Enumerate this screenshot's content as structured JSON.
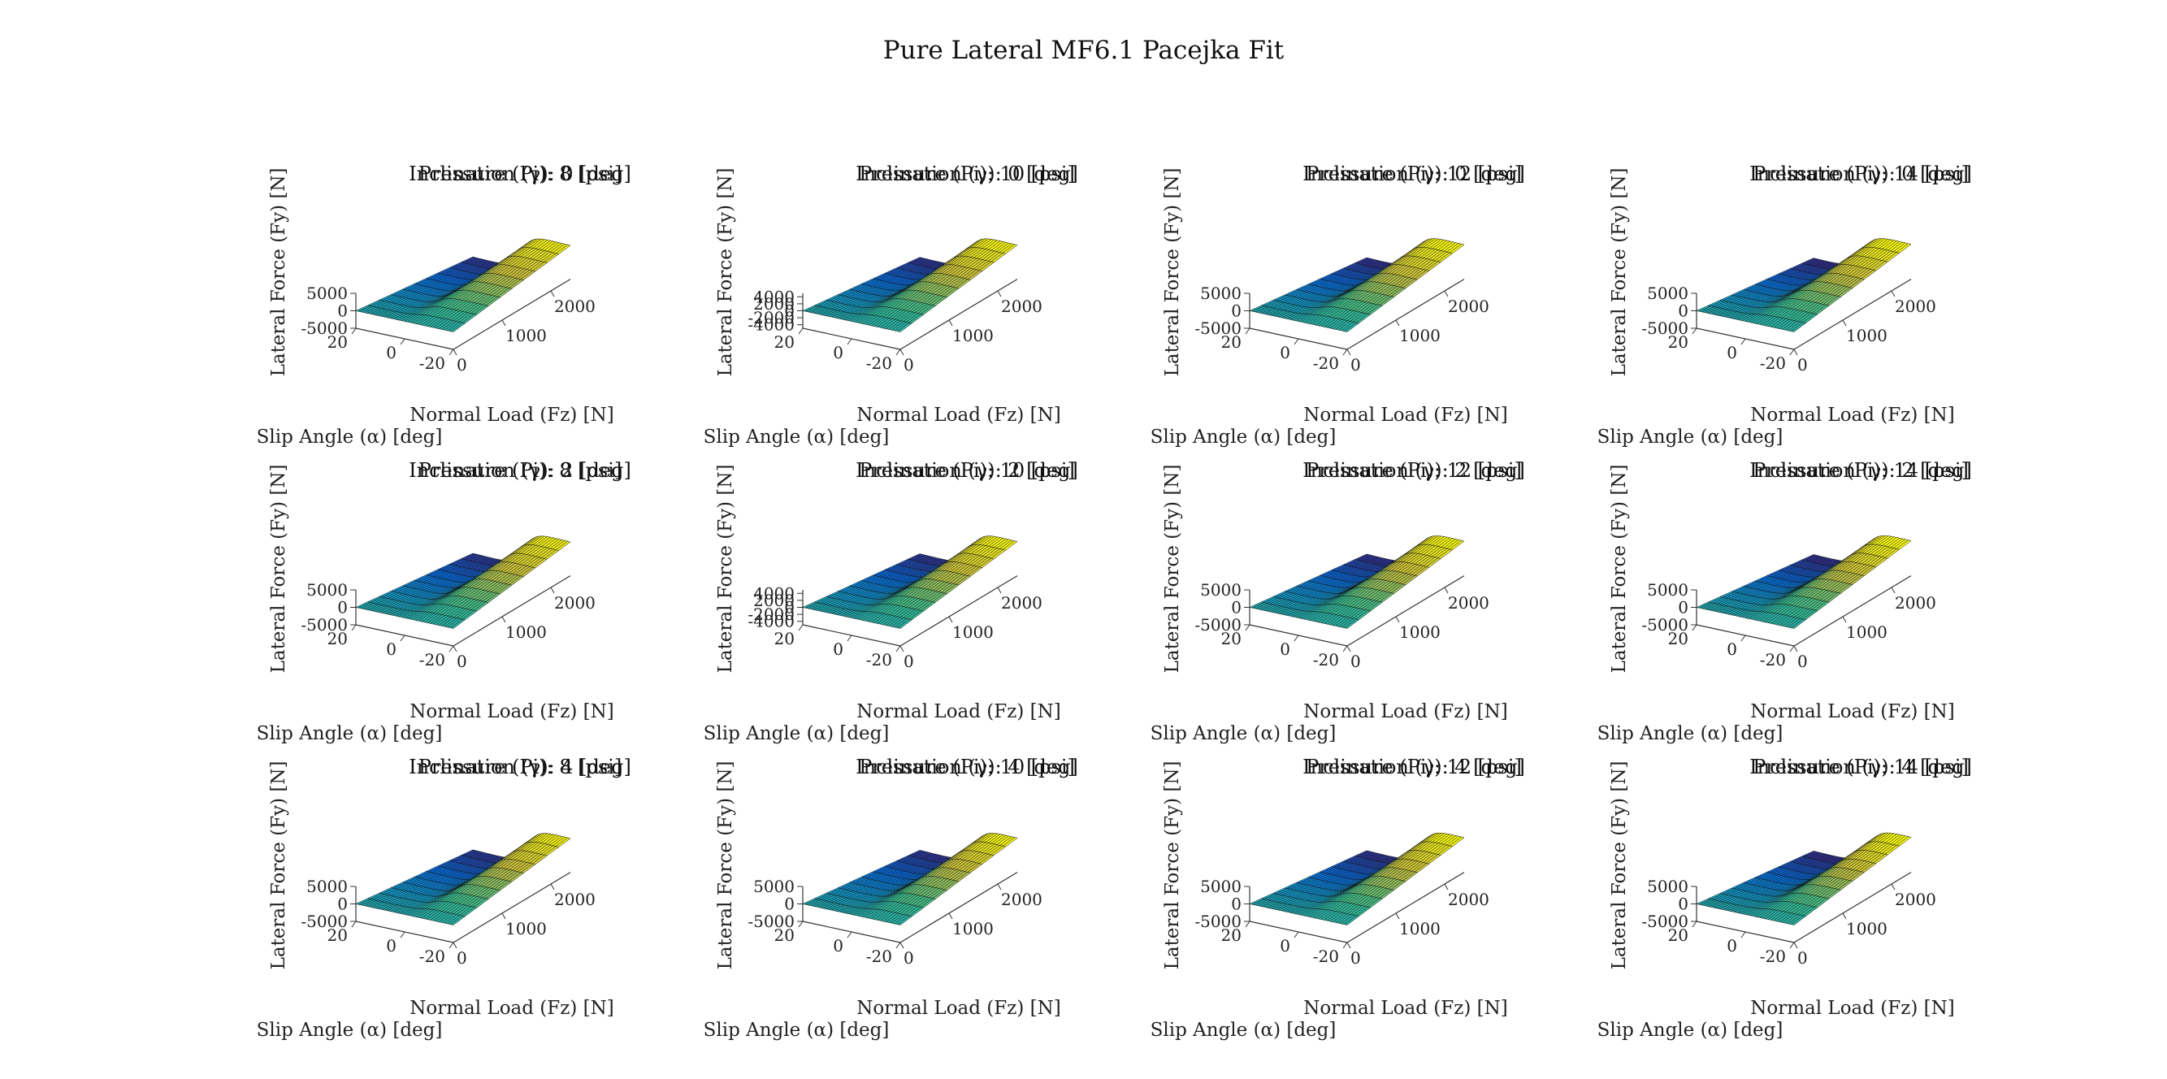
{
  "figure": {
    "title": "Pure Lateral MF6.1 Pacejka Fit"
  },
  "chart_data": [
    {
      "type": "surface",
      "pressure": 8,
      "inclination": 0,
      "title_pressure": "Pressure (Pi): 8 [psi]",
      "title_inclination": "Inclination (γ): 0 [deg]",
      "xlabel": "Normal Load (Fz) [N]",
      "ylabel": "Slip Angle (α) [deg]",
      "zlabel": "Lateral Force (Fy) [N]",
      "x_ticks": [
        "0",
        "1000",
        "2000"
      ],
      "y_ticks": [
        "20",
        "0",
        "-20"
      ],
      "z_ticks": [
        "5000",
        "0",
        "-5000"
      ],
      "xlim": [
        0,
        2400
      ],
      "ylim": [
        -20,
        20
      ],
      "zlim": [
        -5000,
        5000
      ]
    },
    {
      "type": "surface",
      "pressure": 10,
      "inclination": 0,
      "title_pressure": "Pressure (Pi): 10 [psi]",
      "title_inclination": "Inclination (γ): 0 [deg]",
      "xlabel": "Normal Load (Fz) [N]",
      "ylabel": "Slip Angle (α) [deg]",
      "zlabel": "Lateral Force (Fy) [N]",
      "x_ticks": [
        "0",
        "1000",
        "2000"
      ],
      "y_ticks": [
        "20",
        "0",
        "-20"
      ],
      "z_ticks": [
        "4000",
        "2000",
        "0",
        "-2000",
        "-4000"
      ],
      "xlim": [
        0,
        2400
      ],
      "ylim": [
        -20,
        20
      ],
      "zlim": [
        -5000,
        5000
      ]
    },
    {
      "type": "surface",
      "pressure": 12,
      "inclination": 0,
      "title_pressure": "Pressure (Pi): 12 [psi]",
      "title_inclination": "Inclination (γ): 0 [deg]",
      "xlabel": "Normal Load (Fz) [N]",
      "ylabel": "Slip Angle (α) [deg]",
      "zlabel": "Lateral Force (Fy) [N]",
      "x_ticks": [
        "0",
        "1000",
        "2000"
      ],
      "y_ticks": [
        "20",
        "0",
        "-20"
      ],
      "z_ticks": [
        "5000",
        "0",
        "-5000"
      ],
      "xlim": [
        0,
        2400
      ],
      "ylim": [
        -20,
        20
      ],
      "zlim": [
        -5000,
        5000
      ]
    },
    {
      "type": "surface",
      "pressure": 14,
      "inclination": 0,
      "title_pressure": "Pressure (Pi): 14 [psi]",
      "title_inclination": "Inclination (γ): 0 [deg]",
      "xlabel": "Normal Load (Fz) [N]",
      "ylabel": "Slip Angle (α) [deg]",
      "zlabel": "Lateral Force (Fy) [N]",
      "x_ticks": [
        "0",
        "1000",
        "2000"
      ],
      "y_ticks": [
        "20",
        "0",
        "-20"
      ],
      "z_ticks": [
        "5000",
        "0",
        "-5000"
      ],
      "xlim": [
        0,
        2400
      ],
      "ylim": [
        -20,
        20
      ],
      "zlim": [
        -5000,
        5000
      ]
    },
    {
      "type": "surface",
      "pressure": 8,
      "inclination": 2,
      "title_pressure": "Pressure (Pi): 8 [psi]",
      "title_inclination": "Inclination (γ): 2 [deg]",
      "xlabel": "Normal Load (Fz) [N]",
      "ylabel": "Slip Angle (α) [deg]",
      "zlabel": "Lateral Force (Fy) [N]",
      "x_ticks": [
        "0",
        "1000",
        "2000"
      ],
      "y_ticks": [
        "20",
        "0",
        "-20"
      ],
      "z_ticks": [
        "5000",
        "0",
        "-5000"
      ],
      "xlim": [
        0,
        2400
      ],
      "ylim": [
        -20,
        20
      ],
      "zlim": [
        -5000,
        5000
      ]
    },
    {
      "type": "surface",
      "pressure": 10,
      "inclination": 2,
      "title_pressure": "Pressure (Pi): 10 [psi]",
      "title_inclination": "Inclination (γ): 2 [deg]",
      "xlabel": "Normal Load (Fz) [N]",
      "ylabel": "Slip Angle (α) [deg]",
      "zlabel": "Lateral Force (Fy) [N]",
      "x_ticks": [
        "0",
        "1000",
        "2000"
      ],
      "y_ticks": [
        "20",
        "0",
        "-20"
      ],
      "z_ticks": [
        "4000",
        "2000",
        "0",
        "-2000",
        "-4000"
      ],
      "xlim": [
        0,
        2400
      ],
      "ylim": [
        -20,
        20
      ],
      "zlim": [
        -5000,
        5000
      ]
    },
    {
      "type": "surface",
      "pressure": 12,
      "inclination": 2,
      "title_pressure": "Pressure (Pi): 12 [psi]",
      "title_inclination": "Inclination (γ): 2 [deg]",
      "xlabel": "Normal Load (Fz) [N]",
      "ylabel": "Slip Angle (α) [deg]",
      "zlabel": "Lateral Force (Fy) [N]",
      "x_ticks": [
        "0",
        "1000",
        "2000"
      ],
      "y_ticks": [
        "20",
        "0",
        "-20"
      ],
      "z_ticks": [
        "5000",
        "0",
        "-5000"
      ],
      "xlim": [
        0,
        2400
      ],
      "ylim": [
        -20,
        20
      ],
      "zlim": [
        -5000,
        5000
      ]
    },
    {
      "type": "surface",
      "pressure": 14,
      "inclination": 2,
      "title_pressure": "Pressure (Pi): 14 [psi]",
      "title_inclination": "Inclination (γ): 2 [deg]",
      "xlabel": "Normal Load (Fz) [N]",
      "ylabel": "Slip Angle (α) [deg]",
      "zlabel": "Lateral Force (Fy) [N]",
      "x_ticks": [
        "0",
        "1000",
        "2000"
      ],
      "y_ticks": [
        "20",
        "0",
        "-20"
      ],
      "z_ticks": [
        "5000",
        "0",
        "-5000"
      ],
      "xlim": [
        0,
        2400
      ],
      "ylim": [
        -20,
        20
      ],
      "zlim": [
        -5000,
        5000
      ]
    },
    {
      "type": "surface",
      "pressure": 8,
      "inclination": 4,
      "title_pressure": "Pressure (Pi): 8 [psi]",
      "title_inclination": "Inclination (γ): 4 [deg]",
      "xlabel": "Normal Load (Fz) [N]",
      "ylabel": "Slip Angle (α) [deg]",
      "zlabel": "Lateral Force (Fy) [N]",
      "x_ticks": [
        "0",
        "1000",
        "2000"
      ],
      "y_ticks": [
        "20",
        "0",
        "-20"
      ],
      "z_ticks": [
        "5000",
        "0",
        "-5000"
      ],
      "xlim": [
        0,
        2400
      ],
      "ylim": [
        -20,
        20
      ],
      "zlim": [
        -5000,
        5000
      ]
    },
    {
      "type": "surface",
      "pressure": 10,
      "inclination": 4,
      "title_pressure": "Pressure (Pi): 10 [psi]",
      "title_inclination": "Inclination (γ): 4 [deg]",
      "xlabel": "Normal Load (Fz) [N]",
      "ylabel": "Slip Angle (α) [deg]",
      "zlabel": "Lateral Force (Fy) [N]",
      "x_ticks": [
        "0",
        "1000",
        "2000"
      ],
      "y_ticks": [
        "20",
        "0",
        "-20"
      ],
      "z_ticks": [
        "5000",
        "0",
        "-5000"
      ],
      "xlim": [
        0,
        2400
      ],
      "ylim": [
        -20,
        20
      ],
      "zlim": [
        -5000,
        5000
      ]
    },
    {
      "type": "surface",
      "pressure": 12,
      "inclination": 4,
      "title_pressure": "Pressure (Pi): 12 [psi]",
      "title_inclination": "Inclination (γ): 4 [deg]",
      "xlabel": "Normal Load (Fz) [N]",
      "ylabel": "Slip Angle (α) [deg]",
      "zlabel": "Lateral Force (Fy) [N]",
      "x_ticks": [
        "0",
        "1000",
        "2000"
      ],
      "y_ticks": [
        "20",
        "0",
        "-20"
      ],
      "z_ticks": [
        "5000",
        "0",
        "-5000"
      ],
      "xlim": [
        0,
        2400
      ],
      "ylim": [
        -20,
        20
      ],
      "zlim": [
        -5000,
        5000
      ]
    },
    {
      "type": "surface",
      "pressure": 14,
      "inclination": 4,
      "title_pressure": "Pressure (Pi): 14 [psi]",
      "title_inclination": "Inclination (γ): 4 [deg]",
      "xlabel": "Normal Load (Fz) [N]",
      "ylabel": "Slip Angle (α) [deg]",
      "zlabel": "Lateral Force (Fy) [N]",
      "x_ticks": [
        "0",
        "1000",
        "2000"
      ],
      "y_ticks": [
        "20",
        "0",
        "-20"
      ],
      "z_ticks": [
        "5000",
        "0",
        "-5000"
      ],
      "xlim": [
        0,
        2400
      ],
      "ylim": [
        -20,
        20
      ],
      "zlim": [
        -5000,
        5000
      ]
    }
  ]
}
